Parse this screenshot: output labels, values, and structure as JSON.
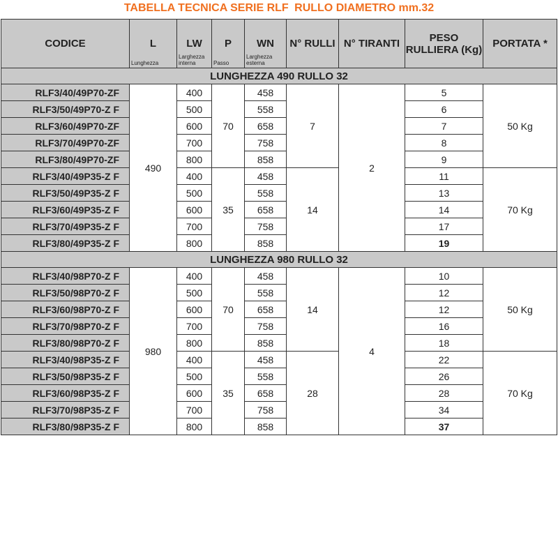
{
  "title": {
    "part1": "TABELLA TECNICA SERIE RLF",
    "part2": "RULLO DIAMETRO mm.32"
  },
  "headers": [
    {
      "main": "CODICE",
      "sub": ""
    },
    {
      "main": "L",
      "sub": "Lunghezza"
    },
    {
      "main": "LW",
      "sub": "Larghezza interna"
    },
    {
      "main": "P",
      "sub": "Passo"
    },
    {
      "main": "WN",
      "sub": "Larghezza esterna"
    },
    {
      "main": "N° RULLI",
      "sub": ""
    },
    {
      "main": "N° TIRANTI",
      "sub": ""
    },
    {
      "main": "PESO RULLIERA (Kg)",
      "sub": ""
    },
    {
      "main": "PORTATA *",
      "sub": ""
    }
  ],
  "sections": [
    {
      "title": "LUNGHEZZA 490 RULLO 32",
      "L": "490",
      "tiranti": "2",
      "groups": [
        {
          "P": "70",
          "rulli": "7",
          "portata": "50 Kg",
          "rows": [
            {
              "codice": "RLF3/40/49P70-ZF",
              "lw": "400",
              "wn": "458",
              "peso": "5"
            },
            {
              "codice": "RLF3/50/49P70-Z F",
              "lw": "500",
              "wn": "558",
              "peso": "6"
            },
            {
              "codice": "RLF3/60/49P70-ZF",
              "lw": "600",
              "wn": "658",
              "peso": "7"
            },
            {
              "codice": "RLF3/70/49P70-ZF",
              "lw": "700",
              "wn": "758",
              "peso": "8"
            },
            {
              "codice": "RLF3/80/49P70-ZF",
              "lw": "800",
              "wn": "858",
              "peso": "9"
            }
          ]
        },
        {
          "P": "35",
          "rulli": "14",
          "portata": "70 Kg",
          "rows": [
            {
              "codice": "RLF3/40/49P35-Z F",
              "lw": "400",
              "wn": "458",
              "peso": "11"
            },
            {
              "codice": "RLF3/50/49P35-Z F",
              "lw": "500",
              "wn": "558",
              "peso": "13"
            },
            {
              "codice": "RLF3/60/49P35-Z F",
              "lw": "600",
              "wn": "658",
              "peso": "14"
            },
            {
              "codice": "RLF3/70/49P35-Z F",
              "lw": "700",
              "wn": "758",
              "peso": "17"
            },
            {
              "codice": "RLF3/80/49P35-Z F",
              "lw": "800",
              "wn": "858",
              "peso": "19",
              "bold": true
            }
          ]
        }
      ]
    },
    {
      "title": "LUNGHEZZA 980 RULLO 32",
      "L": "980",
      "tiranti": "4",
      "groups": [
        {
          "P": "70",
          "rulli": "14",
          "portata": "50 Kg",
          "rows": [
            {
              "codice": "RLF3/40/98P70-Z F",
              "lw": "400",
              "wn": "458",
              "peso": "10"
            },
            {
              "codice": "RLF3/50/98P70-Z F",
              "lw": "500",
              "wn": "558",
              "peso": "12"
            },
            {
              "codice": "RLF3/60/98P70-Z F",
              "lw": "600",
              "wn": "658",
              "peso": "12"
            },
            {
              "codice": "RLF3/70/98P70-Z F",
              "lw": "700",
              "wn": "758",
              "peso": "16"
            },
            {
              "codice": "RLF3/80/98P70-Z F",
              "lw": "800",
              "wn": "858",
              "peso": "18"
            }
          ]
        },
        {
          "P": "35",
          "rulli": "28",
          "portata": "70 Kg",
          "rows": [
            {
              "codice": "RLF3/40/98P35-Z F",
              "lw": "400",
              "wn": "458",
              "peso": "22"
            },
            {
              "codice": "RLF3/50/98P35-Z F",
              "lw": "500",
              "wn": "558",
              "peso": "26"
            },
            {
              "codice": "RLF3/60/98P35-Z F",
              "lw": "600",
              "wn": "658",
              "peso": "28"
            },
            {
              "codice": "RLF3/70/98P35-Z F",
              "lw": "700",
              "wn": "758",
              "peso": "34"
            },
            {
              "codice": "RLF3/80/98P35-Z F",
              "lw": "800",
              "wn": "858",
              "peso": "37",
              "bold": true
            }
          ]
        }
      ]
    }
  ]
}
